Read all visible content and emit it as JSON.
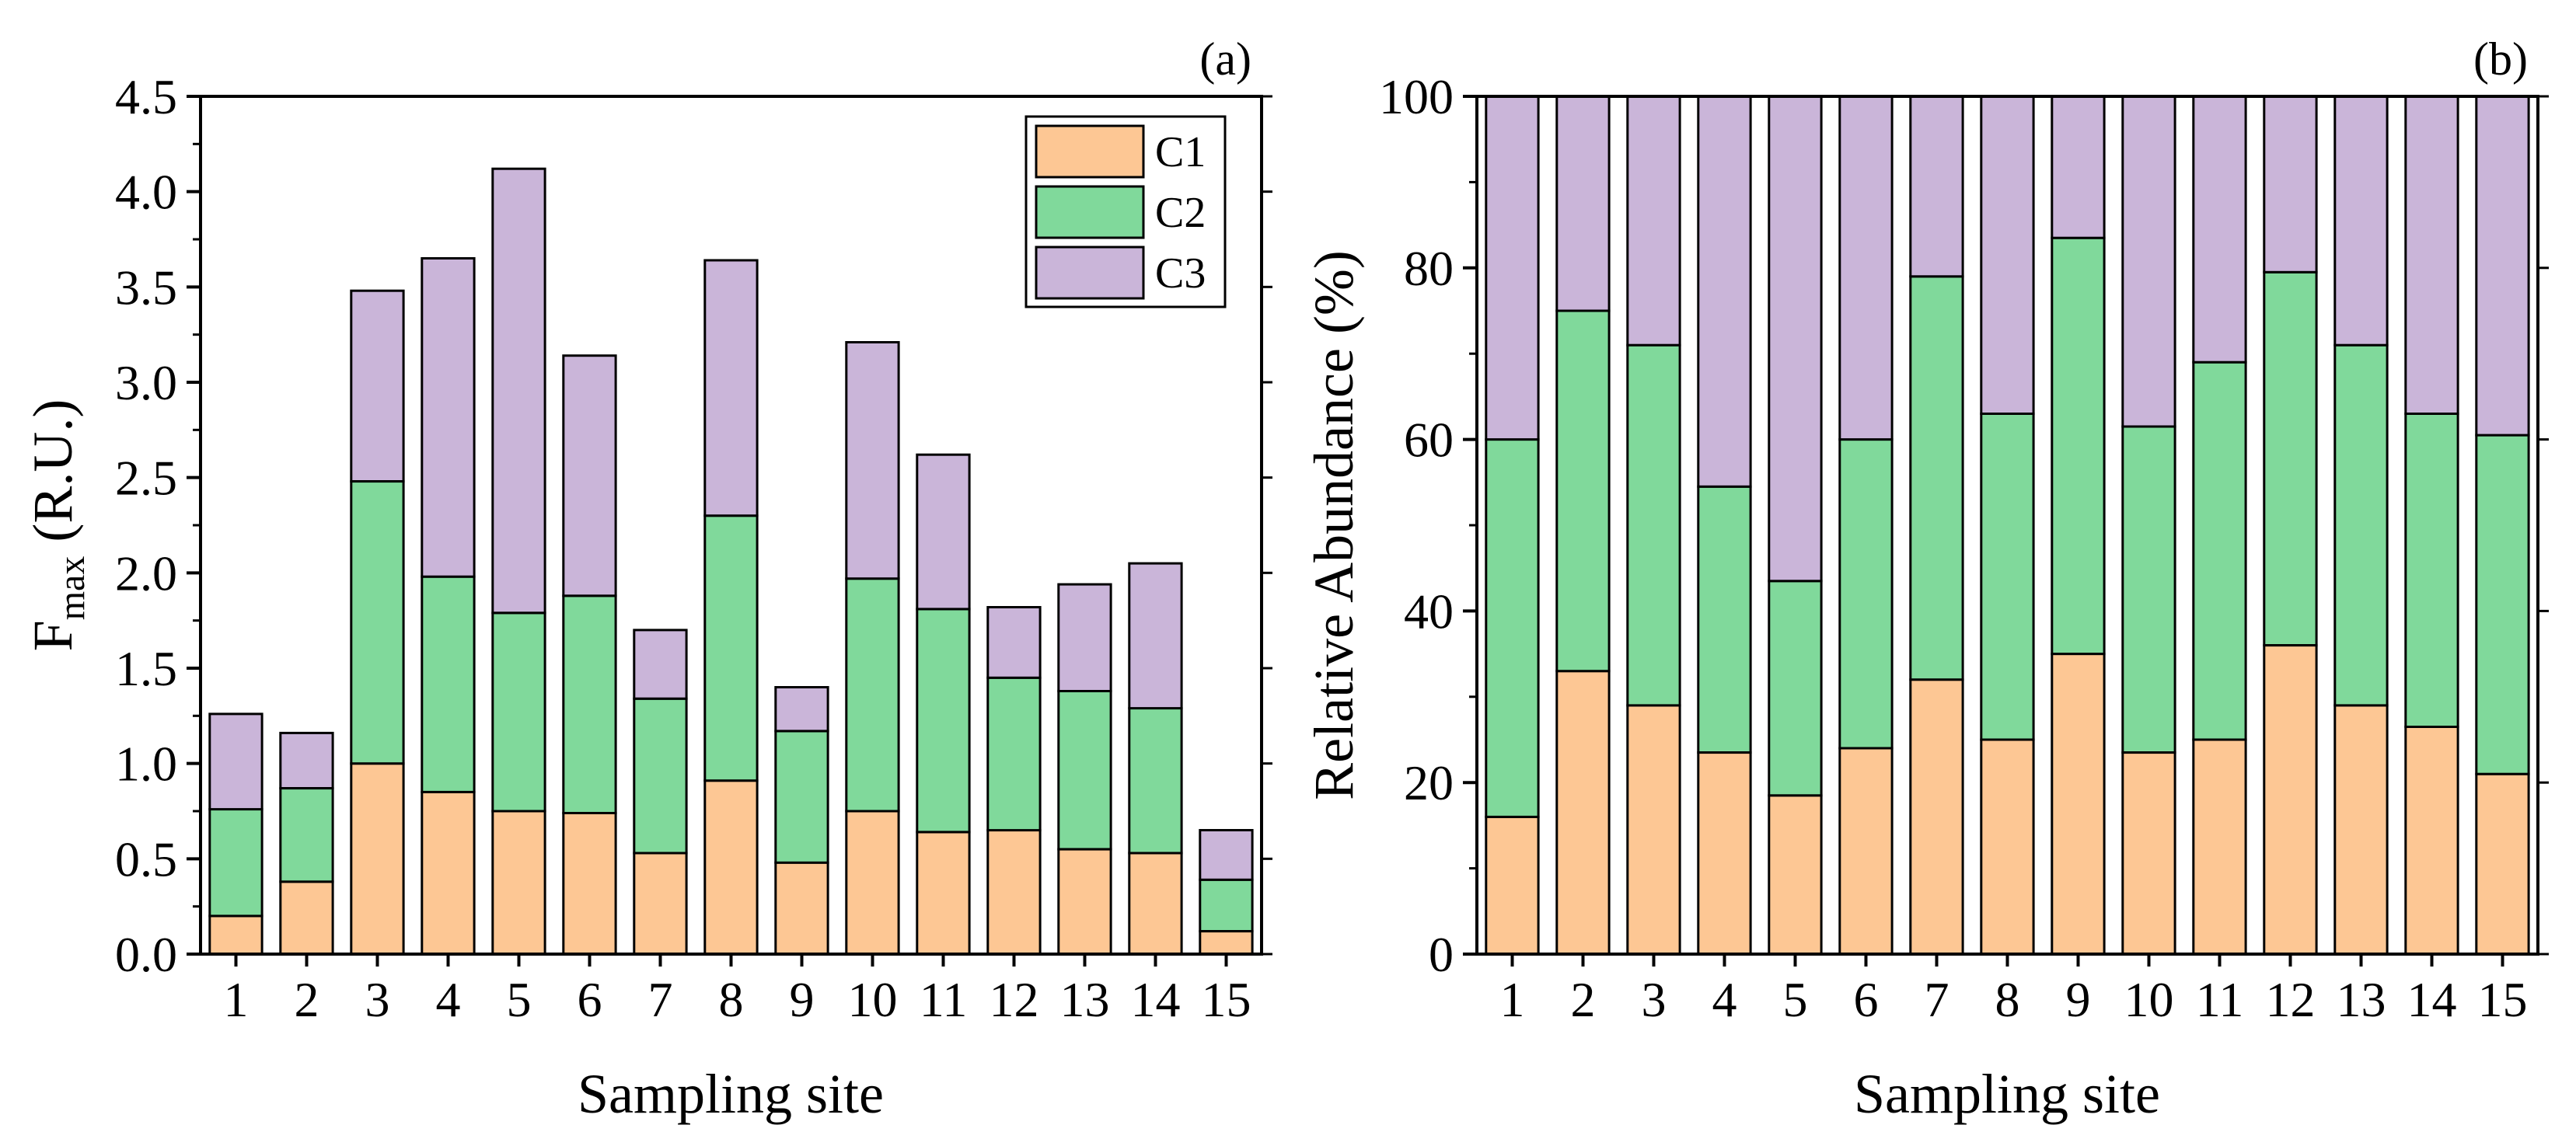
{
  "chart_data": [
    {
      "panel": "(a)",
      "type": "bar",
      "stacked": true,
      "categories": [
        "1",
        "2",
        "3",
        "4",
        "5",
        "6",
        "7",
        "8",
        "9",
        "10",
        "11",
        "12",
        "13",
        "14",
        "15"
      ],
      "series": [
        {
          "name": "C1",
          "color": "#FDC794",
          "values": [
            0.2,
            0.38,
            1.0,
            0.85,
            0.75,
            0.74,
            0.53,
            0.91,
            0.48,
            0.75,
            0.64,
            0.65,
            0.55,
            0.53,
            0.12
          ]
        },
        {
          "name": "C2",
          "color": "#80D99B",
          "values": [
            0.56,
            0.49,
            1.48,
            1.13,
            1.04,
            1.14,
            0.81,
            1.39,
            0.69,
            1.22,
            1.17,
            0.8,
            0.83,
            0.76,
            0.27
          ]
        },
        {
          "name": "C3",
          "color": "#CAB5D9",
          "values": [
            0.5,
            0.29,
            1.0,
            1.67,
            2.33,
            1.26,
            0.36,
            1.34,
            0.23,
            1.24,
            0.81,
            0.37,
            0.56,
            0.76,
            0.26
          ]
        }
      ],
      "ylabel_main": "F",
      "ylabel_sub": "max",
      "ylabel_unit": "(R.U.)",
      "xlabel": "Sampling site",
      "ylim": [
        0,
        4.5
      ],
      "yticks": [
        "0.0",
        "0.5",
        "1.0",
        "1.5",
        "2.0",
        "2.5",
        "3.0",
        "3.5",
        "4.0",
        "4.5"
      ],
      "legend": {
        "position": "top-right",
        "entries": [
          "C1",
          "C2",
          "C3"
        ]
      }
    },
    {
      "panel": "(b)",
      "type": "bar",
      "stacked": true,
      "categories": [
        "1",
        "2",
        "3",
        "4",
        "5",
        "6",
        "7",
        "8",
        "9",
        "10",
        "11",
        "12",
        "13",
        "14",
        "15"
      ],
      "series": [
        {
          "name": "C1",
          "color": "#FDC794",
          "values": [
            16.0,
            33.0,
            29.0,
            23.5,
            18.5,
            24.0,
            32.0,
            25.0,
            35.0,
            23.5,
            25.0,
            36.0,
            29.0,
            26.5,
            21.0
          ]
        },
        {
          "name": "C2",
          "color": "#80D99B",
          "values": [
            44.0,
            42.0,
            42.0,
            31.0,
            25.0,
            36.0,
            47.0,
            38.0,
            48.5,
            38.0,
            44.0,
            43.5,
            42.0,
            36.5,
            39.5
          ]
        },
        {
          "name": "C3",
          "color": "#CAB5D9",
          "values": [
            40.0,
            25.0,
            29.0,
            45.5,
            56.5,
            40.0,
            21.0,
            37.0,
            16.5,
            38.5,
            31.0,
            20.5,
            29.0,
            37.0,
            39.5
          ]
        }
      ],
      "ylabel": "Relative Abundance (%)",
      "xlabel": "Sampling site",
      "ylim": [
        0,
        100
      ],
      "yticks": [
        "0",
        "20",
        "40",
        "60",
        "80",
        "100"
      ]
    }
  ]
}
